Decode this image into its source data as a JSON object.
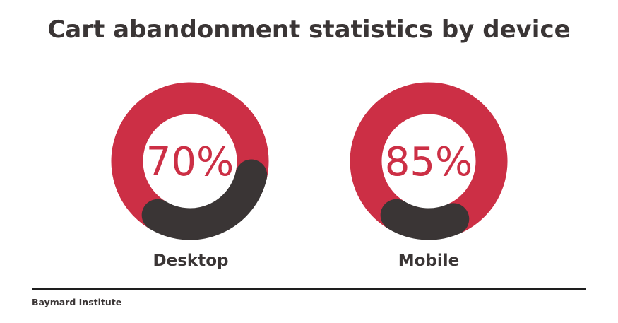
{
  "chart_data": {
    "type": "pie",
    "title": "Cart abandonment statistics by device",
    "categories": [
      "Desktop",
      "Mobile"
    ],
    "values": [
      70,
      85
    ],
    "value_labels": [
      "70%",
      "85%"
    ],
    "colors": {
      "abandoned": "#cc2f45",
      "remainder": "#3a3535",
      "text_value": "#cc2f45",
      "text_label": "#3a3535"
    }
  },
  "source": "Baymard Institute"
}
